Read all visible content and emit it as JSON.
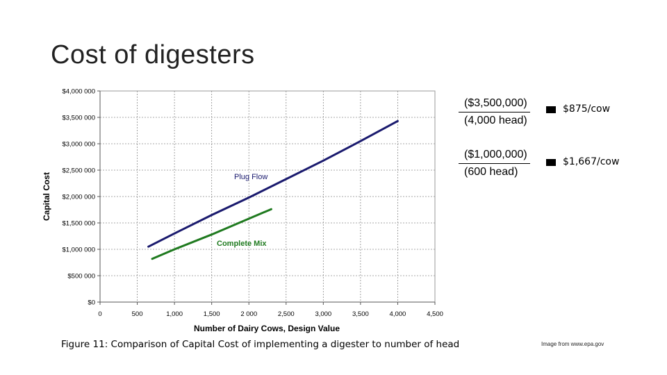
{
  "slide": {
    "title": "Cost of digesters",
    "caption": "Figure 11: Comparison of Capital Cost of implementing a digester to number of head",
    "credit": "Image from www.epa.gov"
  },
  "annotations": [
    {
      "numerator": "($3,500,000)",
      "denominator": "(4,000 head)",
      "per_cow": "$875/cow"
    },
    {
      "numerator": "($1,000,000)",
      "denominator": "(600 head)",
      "per_cow": "$1,667/cow"
    }
  ],
  "chart_data": {
    "type": "line",
    "xlabel": "Number of Dairy Cows, Design Value",
    "ylabel": "Capital Cost",
    "xlim": [
      0,
      4500
    ],
    "ylim": [
      0,
      4000000
    ],
    "x_ticks": [
      0,
      500,
      1000,
      1500,
      2000,
      2500,
      3000,
      3500,
      4000,
      4500
    ],
    "x_tick_labels": [
      "0",
      "500",
      "1,000",
      "1,500",
      "2 000",
      "2,500",
      "3,000",
      "3,500",
      "4,000",
      "4,500"
    ],
    "y_ticks": [
      0,
      500000,
      1000000,
      1500000,
      2000000,
      2500000,
      3000000,
      3500000,
      4000000
    ],
    "y_tick_labels": [
      "$0",
      "$500 000",
      "$1,000 000",
      "$1,500 000",
      "$2,000 000",
      "$2,500 000",
      "$3,000 000",
      "$3,500 000",
      "$4,000 000"
    ],
    "grid": true,
    "series": [
      {
        "name": "Plug Flow",
        "color": "#1a1a6e",
        "x": [
          650,
          1000,
          1500,
          2000,
          2500,
          3000,
          3500,
          4000
        ],
        "y": [
          1050000,
          1300000,
          1650000,
          1980000,
          2330000,
          2680000,
          3050000,
          3430000
        ]
      },
      {
        "name": "Complete Mix",
        "color": "#1f7a1f",
        "x": [
          700,
          1000,
          1500,
          2000,
          2300
        ],
        "y": [
          820000,
          1000000,
          1280000,
          1580000,
          1760000
        ]
      }
    ]
  }
}
